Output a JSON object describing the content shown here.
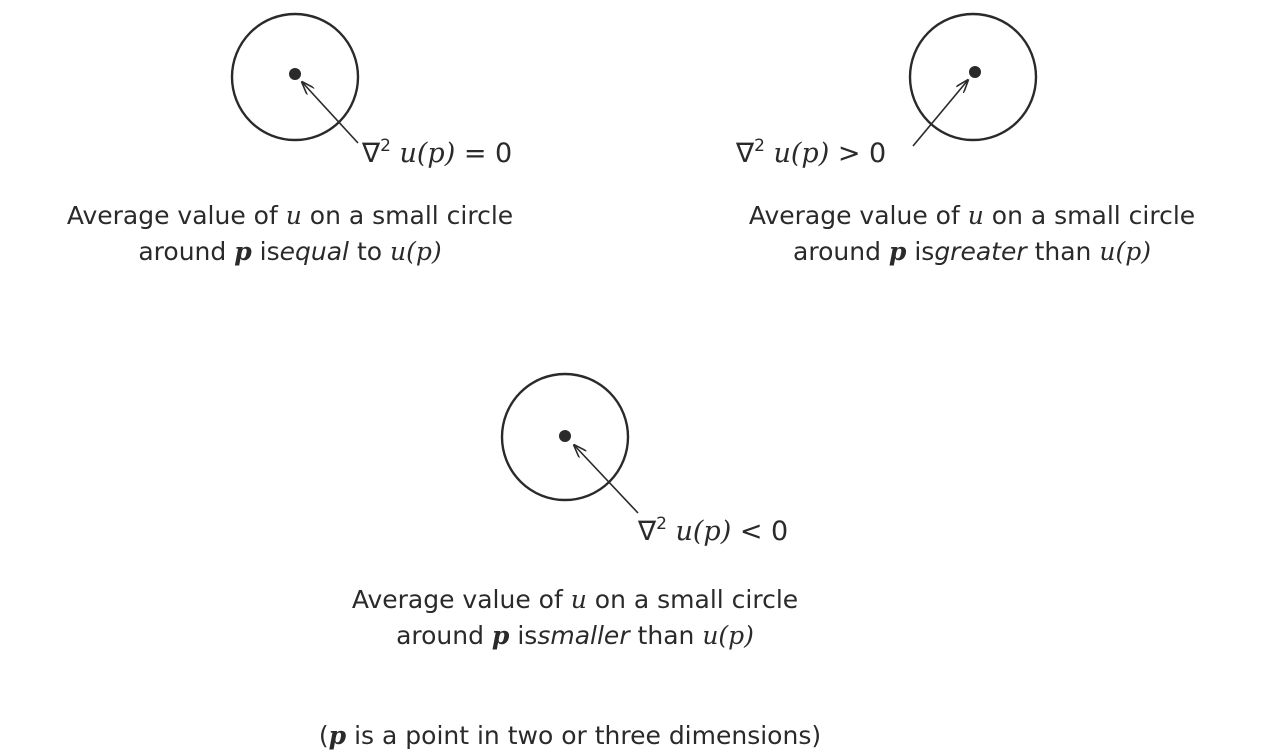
{
  "panels": [
    {
      "id": "equal",
      "formula": {
        "nabla": "∇",
        "power": "2",
        "u": "u",
        "arg": "(p)",
        "relation": "= 0"
      },
      "caption": {
        "line1_prefix": "Average value of",
        "line1_var": "u",
        "line1_suffix": "on a small circle",
        "line2_prefix": "around",
        "line2_var": "p",
        "line2_mid": "is",
        "line2_emph": "equal",
        "line2_after": "to",
        "line2_u": "u",
        "line2_arg": "(p)"
      }
    },
    {
      "id": "greater",
      "formula": {
        "nabla": "∇",
        "power": "2",
        "u": "u",
        "arg": "(p)",
        "relation": "> 0"
      },
      "caption": {
        "line1_prefix": "Average value of",
        "line1_var": "u",
        "line1_suffix": "on a small circle",
        "line2_prefix": "around",
        "line2_var": "p",
        "line2_mid": "is",
        "line2_emph": "greater",
        "line2_after": "than",
        "line2_u": "u",
        "line2_arg": "(p)"
      }
    },
    {
      "id": "smaller",
      "formula": {
        "nabla": "∇",
        "power": "2",
        "u": "u",
        "arg": "(p)",
        "relation": "< 0"
      },
      "caption": {
        "line1_prefix": "Average value of",
        "line1_var": "u",
        "line1_suffix": "on a small circle",
        "line2_prefix": "around",
        "line2_var": "p",
        "line2_mid": "is",
        "line2_emph": "smaller",
        "line2_after": "than",
        "line2_u": "u",
        "line2_arg": "(p)"
      }
    }
  ],
  "footnote": {
    "open": "(",
    "var": "p",
    "text": "is a point in two or three dimensions)"
  },
  "colors": {
    "ink": "#2a2a2a",
    "background": "#ffffff"
  }
}
